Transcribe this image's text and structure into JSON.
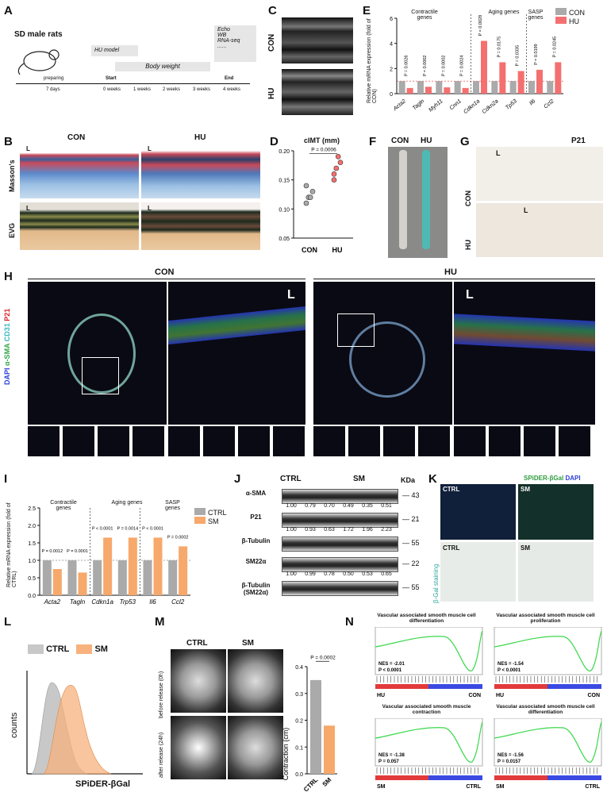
{
  "labels": {
    "A": "A",
    "B": "B",
    "C": "C",
    "D": "D",
    "E": "E",
    "F": "F",
    "G": "G",
    "H": "H",
    "I": "I",
    "J": "J",
    "K": "K",
    "L": "L",
    "M": "M",
    "N": "N"
  },
  "panelA": {
    "title": "SD male rats",
    "hu_model": "HU model",
    "body_weight": "Body weight",
    "tests": [
      "Echo",
      "WB",
      "RNA-seq",
      "......"
    ],
    "timeline": [
      "preparing",
      "Start",
      "End"
    ],
    "ticks": [
      "7 days",
      "0 weeks",
      "1 weeks",
      "2 weeks",
      "3 weeks",
      "4 weeks"
    ]
  },
  "panelB": {
    "con": "CON",
    "hu": "HU",
    "masson": "Masson's",
    "evg": "EVG",
    "L": "L"
  },
  "panelC": {
    "con": "CON",
    "hu": "HU"
  },
  "panelD": {
    "title": "cIMT (mm)",
    "p": "P = 0.0006",
    "yticks": [
      "0.20",
      "0.15",
      "0.10",
      "0.05"
    ],
    "categories": [
      "CON",
      "HU"
    ]
  },
  "panelE": {
    "ylabel": "Relative mRNA expression (fold of CON)",
    "groups": [
      "Contractile genes",
      "Aging genes",
      "SASP genes"
    ],
    "legend": [
      "CON",
      "HU"
    ],
    "yticks": [
      "6",
      "4",
      "2",
      "0"
    ],
    "genes": [
      "Acta2",
      "Tagln",
      "Myh11",
      "Cnn1",
      "Cdkn1a",
      "Cdkn2a",
      "Tp53",
      "Il6",
      "Ccl2"
    ],
    "pvalues": [
      "P = 0.0026",
      "P = 0.0002",
      "P = 0.0002",
      "P = 0.0024",
      "P = 0.0028",
      "P = 0.0175",
      "P = 0.0335",
      "P = 0.0199",
      "P = 0.0245"
    ]
  },
  "panelF": {
    "con": "CON",
    "hu": "HU"
  },
  "panelG": {
    "title": "P21",
    "con": "CON",
    "hu": "HU",
    "L": "L"
  },
  "panelH": {
    "con": "CON",
    "hu": "HU",
    "channels": [
      "DAPI",
      "α-SMA",
      "CD31",
      "P21"
    ],
    "L": "L",
    "legend": [
      "DAPI",
      "αSMA",
      "CD31",
      "P21"
    ]
  },
  "panelI": {
    "ylabel": "Relative mRNA expression (fold of CTRL)",
    "groups": [
      "Contractile genes",
      "Aging genes",
      "SASP genes"
    ],
    "legend": [
      "CTRL",
      "SM"
    ],
    "yticks": [
      "2.5",
      "2.0",
      "1.5",
      "1.0",
      "0.5",
      "0.0"
    ],
    "genes": [
      "Acta2",
      "Tagln",
      "Cdkn1a",
      "Trp53",
      "Il6",
      "Ccl2"
    ],
    "pvalues": [
      "P = 0.0012",
      "P = 0.0001",
      "P < 0.0001",
      "P = 0.0014",
      "P < 0.0001",
      "P = 0.0002"
    ]
  },
  "panelJ": {
    "ctrl": "CTRL",
    "sm": "SM",
    "kda": "KDa",
    "rows": [
      {
        "name": "α-SMA",
        "kda": "43",
        "values": [
          "1.00",
          "0.79",
          "0.70",
          "0.49",
          "0.35",
          "0.51"
        ]
      },
      {
        "name": "P21",
        "kda": "21",
        "values": [
          "1.00",
          "0.93",
          "0.63",
          "1.72",
          "1.96",
          "2.23"
        ]
      },
      {
        "name": "β-Tubulin",
        "kda": "55",
        "values": []
      },
      {
        "name": "SM22α",
        "kda": "22",
        "values": [
          "1.00",
          "0.99",
          "0.78",
          "0.50",
          "0.53",
          "0.65"
        ]
      },
      {
        "name": "β-Tubulin (SM22α)",
        "kda": "55",
        "values": []
      }
    ]
  },
  "panelK": {
    "ctrl": "CTRL",
    "sm": "SM",
    "title1": "SPiDER-βGal",
    "title2": "DAPI",
    "side": "β-Gal staining"
  },
  "panelL": {
    "legend": [
      "CTRL",
      "SM"
    ],
    "ylabel": "counts",
    "xlabel": "SPiDER-βGal"
  },
  "panelM": {
    "ctrl": "CTRL",
    "sm": "SM",
    "rows": [
      "before release (0h)",
      "after release (24h)"
    ],
    "p": "P = 0.0002",
    "ylabel": "Contraction (cm)",
    "yticks": [
      "0.4",
      "0.3",
      "0.2",
      "0.1",
      "0.0"
    ],
    "categories": [
      "CTRL",
      "SM"
    ]
  },
  "panelN": [
    {
      "title": "Vascular associated smooth muscle cell differentiation",
      "nes": "NES = -2.01",
      "p": "P < 0.0001",
      "left": "HU",
      "right": "CON"
    },
    {
      "title": "Vascular associated smooth muscle cell proliferation",
      "nes": "NES = -1.54",
      "p": "P < 0.0001",
      "left": "HU",
      "right": "CON"
    },
    {
      "title": "Vascular associated smooth muscle contraction",
      "nes": "NES = -1.38",
      "p": "P = 0.057",
      "left": "SM",
      "right": "CTRL"
    },
    {
      "title": "Vascular associated smooth muscle cell differentiation",
      "nes": "NES = -1.56",
      "p": "P = 0.0157",
      "left": "SM",
      "right": "CTRL"
    }
  ],
  "chart_data": [
    {
      "type": "bar",
      "title": "",
      "ylabel": "Relative mRNA expression (fold of CON)",
      "categories": [
        "Acta2",
        "Tagln",
        "Myh11",
        "Cnn1",
        "Cdkn1a",
        "Cdkn2a",
        "Tp53",
        "Il6",
        "Ccl2"
      ],
      "series": [
        {
          "name": "CON",
          "values": [
            1,
            1,
            1,
            1,
            1,
            1,
            1,
            1,
            1
          ]
        },
        {
          "name": "HU",
          "values": [
            0.45,
            0.55,
            0.5,
            0.45,
            4.2,
            2.5,
            1.8,
            1.9,
            2.5
          ]
        }
      ],
      "ylim": [
        0,
        6
      ]
    },
    {
      "type": "bar",
      "title": "",
      "ylabel": "Relative mRNA expression (fold of CTRL)",
      "categories": [
        "Acta2",
        "Tagln",
        "Cdkn1a",
        "Trp53",
        "Il6",
        "Ccl2"
      ],
      "series": [
        {
          "name": "CTRL",
          "values": [
            1,
            1,
            1,
            1,
            1,
            1
          ]
        },
        {
          "name": "SM",
          "values": [
            0.75,
            0.65,
            1.65,
            1.65,
            1.65,
            1.4
          ]
        }
      ],
      "ylim": [
        0,
        2.5
      ]
    },
    {
      "type": "scatter",
      "title": "cIMT (mm)",
      "categories": [
        "CON",
        "HU"
      ],
      "series": [
        {
          "name": "CON",
          "values": [
            0.12,
            0.13,
            0.11,
            0.12,
            0.14
          ]
        },
        {
          "name": "HU",
          "values": [
            0.17,
            0.18,
            0.16,
            0.19,
            0.15
          ]
        }
      ],
      "ylim": [
        0.05,
        0.2
      ]
    },
    {
      "type": "bar",
      "ylabel": "Contraction (cm)",
      "categories": [
        "CTRL",
        "SM"
      ],
      "values": [
        0.35,
        0.18
      ],
      "ylim": [
        0,
        0.4
      ]
    }
  ],
  "colors": {
    "con": "#aaaaaa",
    "hu": "#f47070",
    "ctrl": "#aaaaaa",
    "sm": "#f7a86b",
    "green": "#2e8b57"
  }
}
